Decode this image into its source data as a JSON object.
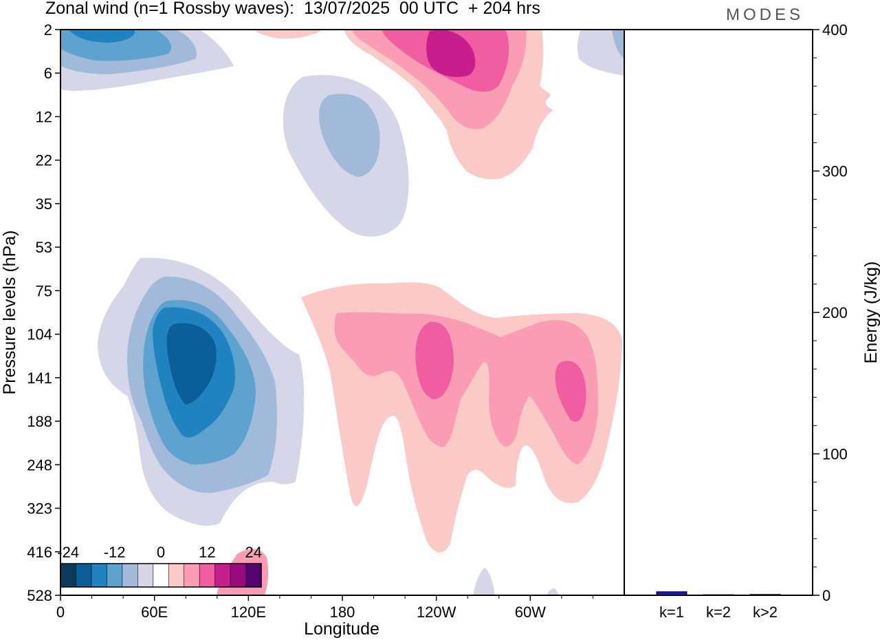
{
  "header": {
    "title": "Zonal wind (n=1 Rossby waves):  13/07/2025  00 UTC  + 204 hrs",
    "brand": "MODES"
  },
  "chart_data": [
    {
      "type": "contour",
      "title": "Zonal wind (n=1 Rossby waves):  13/07/2025  00 UTC  + 204 hrs",
      "xlabel": "Longitude",
      "ylabel": "Pressure levels (hPa)",
      "x_ticks": [
        "0",
        "60E",
        "120E",
        "180",
        "120W",
        "60W"
      ],
      "y_ticks": [
        "2",
        "6",
        "12",
        "22",
        "35",
        "53",
        "75",
        "104",
        "141",
        "188",
        "248",
        "323",
        "416",
        "528"
      ],
      "colorbar": {
        "labels": [
          "-24",
          "-12",
          "0",
          "12",
          "24"
        ],
        "colors": [
          "#0e3a5c",
          "#0a5f99",
          "#1f83c0",
          "#5ea3cf",
          "#a2bad9",
          "#d5d6e8",
          "#ffffff",
          "#fbc9c6",
          "#f99cb4",
          "#f05da0",
          "#c81d8c",
          "#9a0a7f",
          "#54036e"
        ]
      },
      "regions": [
        {
          "name": "negative-upper-left",
          "level": -1,
          "color": "#d5d6e8"
        },
        {
          "name": "negative-upper-left",
          "level": -2,
          "color": "#a2bad9"
        },
        {
          "name": "negative-upper-left",
          "level": -3,
          "color": "#5ea3cf"
        },
        {
          "name": "negative-upper-left",
          "level": -4,
          "color": "#1f83c0"
        },
        {
          "name": "negative-upper-right",
          "level": -1,
          "color": "#d5d6e8"
        },
        {
          "name": "negative-upper-right",
          "level": -2,
          "color": "#a2bad9"
        },
        {
          "name": "negative-upper-center",
          "level": -1,
          "color": "#d5d6e8"
        },
        {
          "name": "negative-upper-center",
          "level": -2,
          "color": "#a2bad9"
        },
        {
          "name": "negative-lower-left",
          "level": -1,
          "color": "#d5d6e8"
        },
        {
          "name": "negative-lower-left",
          "level": -2,
          "color": "#a2bad9"
        },
        {
          "name": "negative-lower-left",
          "level": -3,
          "color": "#5ea3cf"
        },
        {
          "name": "negative-lower-left",
          "level": -4,
          "color": "#1f83c0"
        },
        {
          "name": "negative-lower-left",
          "level": -5,
          "color": "#0a5f99"
        },
        {
          "name": "positive-upper",
          "level": 1,
          "color": "#fbc9c6"
        },
        {
          "name": "positive-upper",
          "level": 2,
          "color": "#f99cb4"
        },
        {
          "name": "positive-upper",
          "level": 3,
          "color": "#f05da0"
        },
        {
          "name": "positive-upper",
          "level": 4,
          "color": "#c81d8c"
        },
        {
          "name": "positive-lower",
          "level": 1,
          "color": "#fbc9c6"
        },
        {
          "name": "positive-lower",
          "level": 2,
          "color": "#f99cb4"
        },
        {
          "name": "positive-lower",
          "level": 3,
          "color": "#f05da0"
        }
      ]
    },
    {
      "type": "bar",
      "ylabel": "Energy (J/kg)",
      "ylim": [
        0,
        400
      ],
      "y_ticks": [
        "0",
        "100",
        "200",
        "300",
        "400"
      ],
      "categories": [
        "k=1",
        "k=2",
        "k>2"
      ],
      "values": [
        2.5,
        0.4,
        0.6
      ],
      "bar_color": "#1616c8"
    }
  ]
}
